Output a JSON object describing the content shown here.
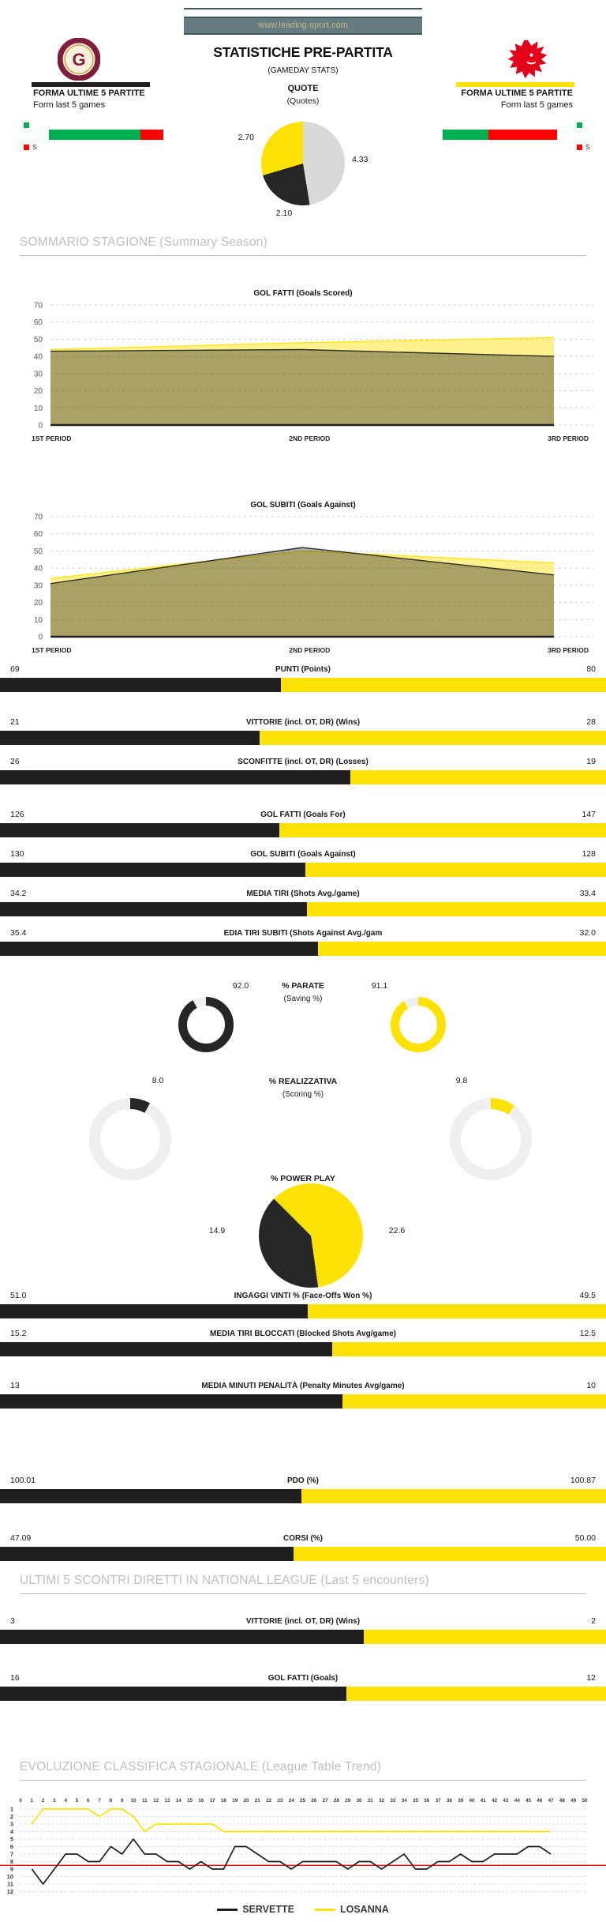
{
  "banner": {
    "text": "www.leading-sport.com"
  },
  "header": {
    "title": "STATISTICHE PRE-PARTITA",
    "subtitle": "(GAMEDAY STATS)",
    "quote_label": "QUOTE",
    "quote_sublabel": "(Quotes)",
    "home": {
      "team": "SERVETTE",
      "color": "#1F1F1F",
      "form_title": "FORMA ULTIME 5 PARTITE",
      "form_subtitle": "Form last 5 games",
      "wins": 4,
      "losses": 1,
      "win_color": "#00B050",
      "loss_color": "#FF0000",
      "loss_legend": "S"
    },
    "away": {
      "team": "LOSANNA",
      "color": "#FFE205",
      "form_title": "FORMA ULTIME 5 PARTITE",
      "form_subtitle": "Form last 5 games",
      "wins": 2,
      "losses": 3,
      "win_color": "#00B050",
      "loss_color": "#FF0000",
      "loss_legend": "S"
    }
  },
  "sections": {
    "summary": "SOMMARIO STAGIONE (Summary Season)",
    "h2h": "ULTIMI 5 SCONTRI DIRETTI IN NATIONAL LEAGUE (Last 5 encounters)",
    "trend": "EVOLUZIONE CLASSIFICA STAGIONALE (League Table Trend)"
  },
  "chart_data": [
    {
      "id": "quote_pie",
      "type": "pie",
      "title": "QUOTE (Quotes)",
      "start_angle_deg": 0,
      "slices": [
        {
          "label": "4.33",
          "value": 4.33,
          "color": "#D9D9D9"
        },
        {
          "label": "2.10",
          "value": 2.1,
          "color": "#262626"
        },
        {
          "label": "2.70",
          "value": 2.7,
          "color": "#FFE205"
        }
      ]
    },
    {
      "id": "goals_scored",
      "type": "area",
      "title": "GOL FATTI (Goals Scored)",
      "categories": [
        "1ST PERIOD",
        "2ND PERIOD",
        "3RD PERIOD"
      ],
      "ylim": [
        0,
        70
      ],
      "yticks": [
        0,
        10,
        20,
        30,
        40,
        50,
        60,
        70
      ],
      "series": [
        {
          "name": "LOSANNA",
          "color": "#FFE205",
          "opacity": 0.45,
          "values": [
            44,
            48,
            51
          ]
        },
        {
          "name": "SERVETTE",
          "color": "#1F1F1F",
          "opacity": 0.38,
          "values": [
            43,
            44,
            40
          ]
        }
      ]
    },
    {
      "id": "goals_against",
      "type": "area",
      "title": "GOL SUBITI (Goals Against)",
      "categories": [
        "1ST PERIOD",
        "2ND PERIOD",
        "3RD PERIOD"
      ],
      "ylim": [
        0,
        70
      ],
      "yticks": [
        0,
        10,
        20,
        30,
        40,
        50,
        60,
        70
      ],
      "series": [
        {
          "name": "LOSANNA",
          "color": "#FFE205",
          "opacity": 0.45,
          "values": [
            34,
            50,
            43
          ]
        },
        {
          "name": "SERVETTE",
          "color": "#1F1F1F",
          "opacity": 0.38,
          "values": [
            31,
            52,
            36
          ]
        }
      ]
    },
    {
      "id": "season_bars",
      "type": "bar",
      "rows": [
        {
          "group": "g1",
          "label": "PUNTI (Points)",
          "home": "69",
          "away": "80"
        },
        {
          "group": "g2",
          "label": "VITTORIE (incl. OT, DR) (Wins)",
          "home": "21",
          "away": "28"
        },
        {
          "group": "g2",
          "label": "SCONFITTE (incl. OT, DR) (Losses)",
          "home": "26",
          "away": "19"
        },
        {
          "group": "g3",
          "label": "GOL FATTI (Goals For)",
          "home": "126",
          "away": "147"
        },
        {
          "group": "g3",
          "label": "GOL SUBITI (Goals Against)",
          "home": "130",
          "away": "128"
        },
        {
          "group": "g4",
          "label": "MEDIA TIRI (Shots Avg./game)",
          "home": "34.2",
          "away": "33.4"
        },
        {
          "group": "g4",
          "label": "EDIA TIRI SUBITI (Shots Against Avg./gam",
          "home": "35.4",
          "away": "32.0"
        }
      ]
    },
    {
      "id": "saving_pct",
      "type": "donut",
      "title": "% PARATE",
      "subtitle": "(Saving %)",
      "track": "#EFEFEF",
      "home": {
        "label": "92.0",
        "value": 92.0,
        "color": "#262626"
      },
      "away": {
        "label": "91.1",
        "value": 91.1,
        "color": "#FFE205"
      }
    },
    {
      "id": "scoring_pct",
      "type": "donut",
      "title": "% REALIZZATIVA",
      "subtitle": "(Scoring %)",
      "track": "#EFEFEF",
      "home": {
        "label": "8.0",
        "value": 8.0,
        "color": "#262626"
      },
      "away": {
        "label": "9.8",
        "value": 9.8,
        "color": "#FFE205"
      }
    },
    {
      "id": "powerplay_pie",
      "type": "pie",
      "title": "% POWER PLAY",
      "start_angle_deg": 315,
      "slices": [
        {
          "label": "22.6",
          "value": 22.6,
          "color": "#FFE205"
        },
        {
          "label": "14.9",
          "value": 14.9,
          "color": "#262626"
        }
      ]
    },
    {
      "id": "more_bars",
      "type": "bar",
      "rows": [
        {
          "group": "g5",
          "label": "INGAGGI VINTI % (Face-Offs Won %)",
          "home": "51.0",
          "away": "49.5"
        },
        {
          "group": "g6",
          "label": "MEDIA TIRI BLOCCATI (Blocked Shots Avg/game)",
          "home": "15.2",
          "away": "12.5"
        },
        {
          "group": "g7",
          "label": "MEDIA MINUTI PENALITÀ (Penalty Minutes Avg/game)",
          "home": "13",
          "away": "10"
        },
        {
          "group": "g8",
          "label": "PDO (%)",
          "home": "100.01",
          "away": "100.87"
        },
        {
          "group": "g9",
          "label": "CORSI (%)",
          "home": "47.09",
          "away": "50.00"
        }
      ]
    },
    {
      "id": "h2h_bars",
      "type": "bar",
      "rows": [
        {
          "group": "h1",
          "label": "VITTORIE (incl. OT, DR) (Wins)",
          "home": "3",
          "away": "2"
        },
        {
          "group": "h2",
          "label": "GOL FATTI (Goals)",
          "home": "16",
          "away": "12"
        }
      ]
    },
    {
      "id": "league_trend",
      "type": "line",
      "title": "EVOLUZIONE CLASSIFICA STAGIONALE (League Table Trend)",
      "x_ticks": [
        0,
        1,
        2,
        3,
        4,
        5,
        6,
        7,
        8,
        9,
        10,
        11,
        12,
        13,
        14,
        15,
        16,
        17,
        18,
        19,
        20,
        21,
        22,
        23,
        24,
        25,
        26,
        27,
        28,
        29,
        30,
        31,
        32,
        33,
        34,
        35,
        36,
        37,
        38,
        39,
        40,
        41,
        42,
        43,
        44,
        45,
        46,
        47,
        48,
        49,
        50
      ],
      "y_ticks": [
        1,
        2,
        3,
        4,
        5,
        6,
        7,
        8,
        9,
        10,
        11,
        12
      ],
      "y_inverted": true,
      "cutoff_line": {
        "y": 8.5,
        "color": "#FF0000"
      },
      "legend": [
        {
          "label": "SERVETTE",
          "color": "#1F1F1F"
        },
        {
          "label": "LOSANNA",
          "color": "#FFE205"
        }
      ],
      "series": [
        {
          "name": "SERVETTE",
          "color": "#1F1F1F",
          "x_start": 1,
          "values": [
            9,
            11,
            9,
            7,
            7,
            8,
            8,
            6,
            7,
            5,
            7,
            7,
            8,
            8,
            9,
            8,
            9,
            9,
            6,
            6,
            7,
            8,
            8,
            9,
            8,
            8,
            8,
            8,
            9,
            8,
            8,
            9,
            8,
            7,
            9,
            9,
            8,
            8,
            7,
            8,
            8,
            7,
            7,
            7,
            6,
            6,
            7
          ]
        },
        {
          "name": "LOSANNA",
          "color": "#FFE205",
          "x_start": 1,
          "values": [
            3,
            1,
            1,
            1,
            1,
            1,
            2,
            1,
            1,
            2,
            4,
            3,
            3,
            3,
            3,
            3,
            3,
            4,
            4,
            4,
            4,
            4,
            4,
            4,
            4,
            4,
            4,
            4,
            4,
            4,
            4,
            4,
            4,
            4,
            4,
            4,
            4,
            4,
            4,
            4,
            4,
            4,
            4,
            4,
            4,
            4,
            4
          ]
        }
      ]
    }
  ]
}
